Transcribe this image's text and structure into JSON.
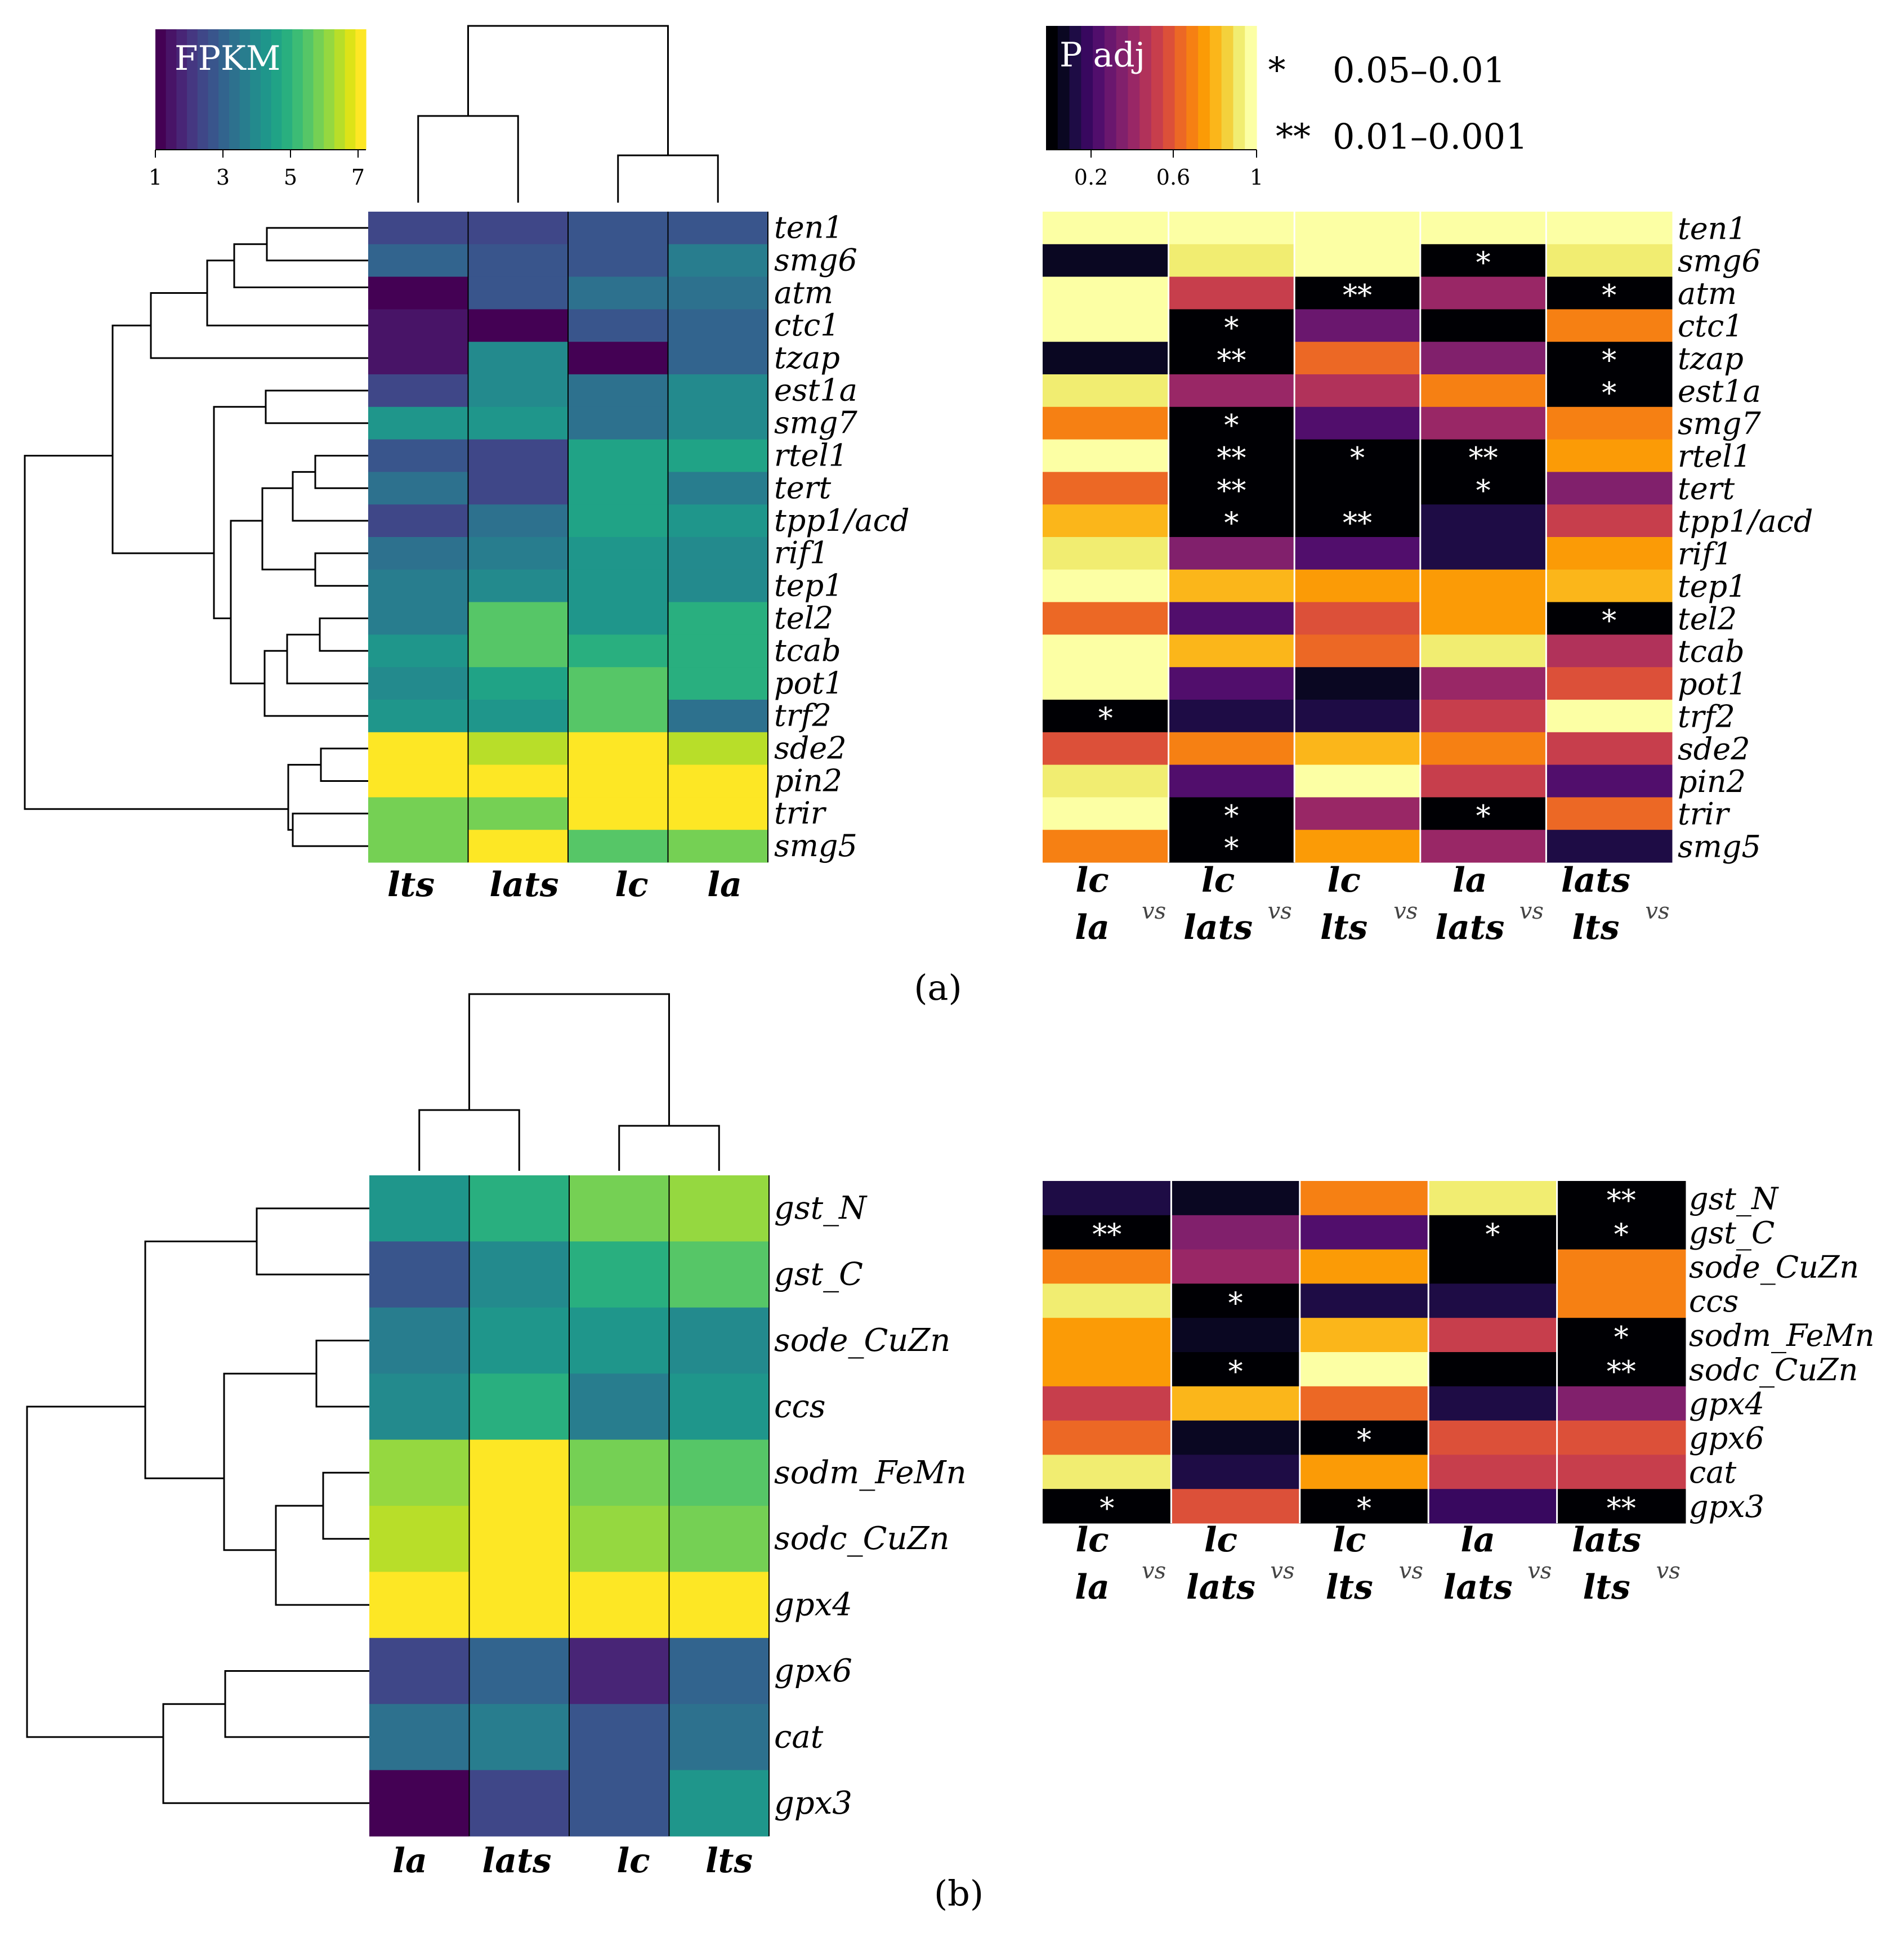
{
  "colorbar": {
    "fpkm_title": "FPKM",
    "fpkm_ticks": [
      "1",
      "3",
      "5",
      "7"
    ],
    "fpkm_colors": [
      "#440154",
      "#481467",
      "#482576",
      "#453781",
      "#3f4788",
      "#39558c",
      "#32648e",
      "#2d718e",
      "#287d8e",
      "#238a8d",
      "#1f968b",
      "#20a386",
      "#29af7f",
      "#3cbc75",
      "#56c667",
      "#75d054",
      "#95d840",
      "#b8de29",
      "#dde318",
      "#fde725"
    ],
    "padj_title": "P adj",
    "padj_ticks": [
      "0.2",
      "0.6",
      "1"
    ],
    "padj_colors": [
      "#000004",
      "#0a0722",
      "#1e0c45",
      "#38085f",
      "#510e6c",
      "#6a176e",
      "#81206c",
      "#992766",
      "#b1325a",
      "#c73e4c",
      "#dc5039",
      "#ec6825",
      "#f68013",
      "#fb9b06",
      "#fbb61a",
      "#f4d13c",
      "#f1ed71",
      "#fcffa4"
    ]
  },
  "legend": [
    {
      "symbol": "*",
      "range": "0.05–0.01"
    },
    {
      "symbol": "**",
      "range": "0.01–0.001"
    }
  ],
  "panel_labels": {
    "a": "(a)",
    "b": "(b)"
  },
  "vs_text": "vs",
  "chart_data": [
    {
      "type": "heatmap",
      "panel": "a",
      "title": "FPKM",
      "columns": [
        "lts",
        "lats",
        "lc",
        "la"
      ],
      "rows": [
        "ten1",
        "smg6",
        "atm",
        "ctc1",
        "tzap",
        "est1a",
        "smg7",
        "rtel1",
        "tert",
        "tpp1/acd",
        "rif1",
        "tep1",
        "tel2",
        "tcab",
        "pot1",
        "trf2",
        "sde2",
        "pin2",
        "trir",
        "smg5"
      ],
      "values": [
        [
          2.2,
          2.3,
          2.6,
          2.7
        ],
        [
          2.8,
          2.7,
          2.7,
          3.6
        ],
        [
          1.0,
          2.7,
          3.2,
          3.1
        ],
        [
          1.5,
          1.0,
          2.6,
          2.9
        ],
        [
          1.5,
          3.7,
          1.0,
          2.9
        ],
        [
          2.2,
          3.9,
          3.1,
          3.7
        ],
        [
          4.1,
          4.3,
          3.2,
          3.9
        ],
        [
          2.6,
          2.2,
          4.5,
          4.5
        ],
        [
          3.1,
          2.2,
          4.5,
          3.5
        ],
        [
          2.3,
          3.1,
          4.5,
          4.0
        ],
        [
          3.2,
          3.6,
          4.0,
          3.9
        ],
        [
          3.6,
          3.9,
          4.0,
          3.8
        ],
        [
          3.6,
          5.2,
          4.3,
          4.8
        ],
        [
          4.3,
          5.2,
          4.7,
          4.8
        ],
        [
          3.8,
          4.5,
          5.3,
          4.7
        ],
        [
          4.3,
          4.3,
          5.3,
          3.2
        ],
        [
          6.7,
          6.2,
          6.7,
          6.3
        ],
        [
          6.7,
          7.0,
          6.7,
          6.7
        ],
        [
          5.8,
          5.6,
          6.7,
          6.7
        ],
        [
          5.8,
          6.7,
          5.4,
          5.8
        ]
      ],
      "col_dendrogram": "((lts,lats),(lc,la))",
      "range": [
        1,
        7
      ]
    },
    {
      "type": "heatmap",
      "panel": "a",
      "title": "P adj",
      "columns": [
        [
          "lc",
          "la"
        ],
        [
          "lc",
          "lats"
        ],
        [
          "lc",
          "lts"
        ],
        [
          "la",
          "lats"
        ],
        [
          "lats",
          "lts"
        ]
      ],
      "rows": [
        "ten1",
        "smg6",
        "atm",
        "ctc1",
        "tzap",
        "est1a",
        "smg7",
        "rtel1",
        "tert",
        "tpp1/acd",
        "rif1",
        "tep1",
        "tel2",
        "tcab",
        "pot1",
        "trf2",
        "sde2",
        "pin2",
        "trir",
        "smg5"
      ],
      "values": [
        [
          1.0,
          1.0,
          1.0,
          1.0,
          1.0
        ],
        [
          0.1,
          0.9,
          1.0,
          0.02,
          0.9
        ],
        [
          1.0,
          0.55,
          0.005,
          0.4,
          0.02
        ],
        [
          1.0,
          0.02,
          0.3,
          0.05,
          0.7
        ],
        [
          0.1,
          0.005,
          0.65,
          0.35,
          0.02
        ],
        [
          0.9,
          0.4,
          0.45,
          0.7,
          0.02
        ],
        [
          0.7,
          0.02,
          0.25,
          0.4,
          0.7
        ],
        [
          0.98,
          0.005,
          0.02,
          0.005,
          0.75
        ],
        [
          0.65,
          0.005,
          0.05,
          0.02,
          0.35
        ],
        [
          0.8,
          0.02,
          0.005,
          0.15,
          0.55
        ],
        [
          0.9,
          0.35,
          0.25,
          0.15,
          0.75
        ],
        [
          0.98,
          0.8,
          0.75,
          0.75,
          0.8
        ],
        [
          0.65,
          0.25,
          0.6,
          0.75,
          0.02
        ],
        [
          1.0,
          0.8,
          0.65,
          0.9,
          0.45
        ],
        [
          1.0,
          0.25,
          0.08,
          0.4,
          0.6
        ],
        [
          0.02,
          0.15,
          0.15,
          0.5,
          0.98
        ],
        [
          0.6,
          0.7,
          0.8,
          0.7,
          0.5
        ],
        [
          0.9,
          0.25,
          0.98,
          0.55,
          0.25
        ],
        [
          0.98,
          0.02,
          0.4,
          0.02,
          0.65
        ],
        [
          0.7,
          0.02,
          0.75,
          0.4,
          0.15
        ]
      ],
      "stars": [
        [
          "",
          "",
          "",
          "",
          ""
        ],
        [
          "",
          "",
          "",
          "*",
          ""
        ],
        [
          "",
          "",
          "**",
          "",
          "*"
        ],
        [
          "",
          "*",
          "",
          "",
          ""
        ],
        [
          "",
          "**",
          "",
          "",
          "*"
        ],
        [
          "",
          "",
          "",
          "",
          "*"
        ],
        [
          "",
          "*",
          "",
          "",
          ""
        ],
        [
          "",
          "**",
          "*",
          "**",
          ""
        ],
        [
          "",
          "**",
          "",
          "*",
          ""
        ],
        [
          "",
          "*",
          "**",
          "",
          ""
        ],
        [
          "",
          "",
          "",
          "",
          ""
        ],
        [
          "",
          "",
          "",
          "",
          ""
        ],
        [
          "",
          "",
          "",
          "",
          "*"
        ],
        [
          "",
          "",
          "",
          "",
          ""
        ],
        [
          "",
          "",
          "",
          "",
          ""
        ],
        [
          "*",
          "",
          "",
          "",
          ""
        ],
        [
          "",
          "",
          "",
          "",
          ""
        ],
        [
          "",
          "",
          "",
          "",
          ""
        ],
        [
          "",
          "*",
          "",
          "*",
          ""
        ],
        [
          "",
          "*",
          "",
          "",
          ""
        ]
      ],
      "range": [
        0,
        1
      ]
    },
    {
      "type": "heatmap",
      "panel": "b",
      "title": "FPKM",
      "columns": [
        "la",
        "lats",
        "lc",
        "lts"
      ],
      "rows": [
        "gst_N",
        "gst_C",
        "sode_CuZn",
        "ccs",
        "sodm_FeMn",
        "sodc_CuZn",
        "gpx4",
        "gpx6",
        "cat",
        "gpx3"
      ],
      "values": [
        [
          4.3,
          4.8,
          5.5,
          6.0
        ],
        [
          2.7,
          3.9,
          4.8,
          5.4
        ],
        [
          3.6,
          4.3,
          4.1,
          3.9
        ],
        [
          3.9,
          4.8,
          3.5,
          4.3
        ],
        [
          6.0,
          6.7,
          5.6,
          5.4
        ],
        [
          6.3,
          7.0,
          6.0,
          5.8
        ],
        [
          7.0,
          6.7,
          6.7,
          7.0
        ],
        [
          2.2,
          2.9,
          1.7,
          3.0
        ],
        [
          3.2,
          3.6,
          2.6,
          3.2
        ],
        [
          1.0,
          2.2,
          2.7,
          4.1
        ]
      ],
      "col_dendrogram": "((la,lats),(lc,lts))",
      "range": [
        1,
        7
      ]
    },
    {
      "type": "heatmap",
      "panel": "b",
      "title": "P adj",
      "columns": [
        [
          "lc",
          "la"
        ],
        [
          "lc",
          "lats"
        ],
        [
          "lc",
          "lts"
        ],
        [
          "la",
          "lats"
        ],
        [
          "lats",
          "lts"
        ]
      ],
      "rows": [
        "gst_N",
        "gst_C",
        "sode_CuZn",
        "ccs",
        "sodm_FeMn",
        "sodc_CuZn",
        "gpx4",
        "gpx6",
        "cat",
        "gpx3"
      ],
      "values": [
        [
          0.15,
          0.08,
          0.7,
          0.9,
          0.005
        ],
        [
          0.005,
          0.35,
          0.25,
          0.02,
          0.02
        ],
        [
          0.7,
          0.4,
          0.75,
          0.05,
          0.7
        ],
        [
          0.9,
          0.02,
          0.15,
          0.15,
          0.7
        ],
        [
          0.75,
          0.08,
          0.8,
          0.5,
          0.02
        ],
        [
          0.75,
          0.02,
          0.98,
          0.05,
          0.005
        ],
        [
          0.55,
          0.8,
          0.65,
          0.15,
          0.35
        ],
        [
          0.65,
          0.08,
          0.02,
          0.6,
          0.6
        ],
        [
          0.9,
          0.15,
          0.75,
          0.5,
          0.55
        ],
        [
          0.02,
          0.6,
          0.02,
          0.2,
          0.005
        ]
      ],
      "stars": [
        [
          "",
          "",
          "",
          "",
          "**"
        ],
        [
          "**",
          "",
          "",
          "*",
          "*"
        ],
        [
          "",
          "",
          "",
          "",
          ""
        ],
        [
          "",
          "*",
          "",
          "",
          ""
        ],
        [
          "",
          "",
          "",
          "",
          "*"
        ],
        [
          "",
          "*",
          "",
          "",
          "**"
        ],
        [
          "",
          "",
          "",
          "",
          ""
        ],
        [
          "",
          "",
          "*",
          "",
          ""
        ],
        [
          "",
          "",
          "",
          "",
          ""
        ],
        [
          "*",
          "",
          "*",
          "",
          "**"
        ]
      ],
      "range": [
        0,
        1
      ]
    }
  ]
}
